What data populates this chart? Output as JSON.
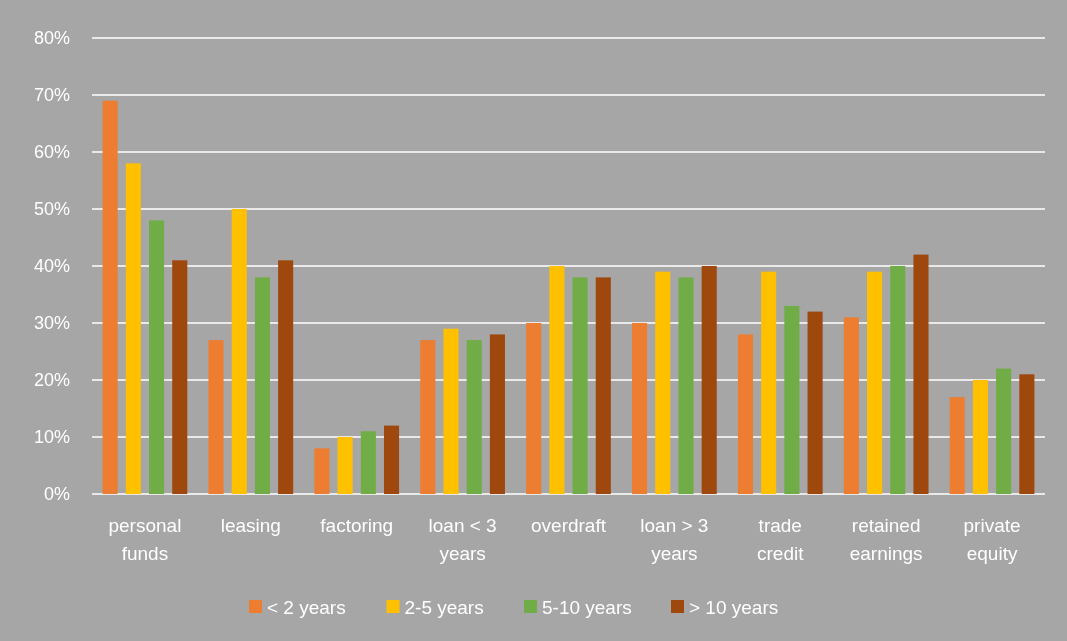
{
  "chart_data": {
    "type": "bar",
    "categories": [
      "personal funds",
      "leasing",
      "factoring",
      "loan < 3 years",
      "overdraft",
      "loan > 3 years",
      "trade credit",
      "retained earnings",
      "private equity"
    ],
    "series": [
      {
        "name": "< 2 years",
        "color": "#ed7d31",
        "values": [
          69,
          27,
          8,
          27,
          30,
          30,
          28,
          31,
          17
        ]
      },
      {
        "name": "2-5 years",
        "color": "#ffc000",
        "values": [
          58,
          50,
          10,
          29,
          40,
          39,
          39,
          39,
          20
        ]
      },
      {
        "name": "5-10 years",
        "color": "#70ad47",
        "values": [
          48,
          38,
          11,
          27,
          38,
          38,
          33,
          40,
          22
        ]
      },
      {
        "name": "> 10 years",
        "color": "#9e480e",
        "values": [
          41,
          41,
          12,
          28,
          38,
          40,
          32,
          42,
          21
        ]
      }
    ],
    "ylim": [
      0,
      80
    ],
    "yticks": [
      {
        "value": 0,
        "label": "0%"
      },
      {
        "value": 10,
        "label": "10%"
      },
      {
        "value": 20,
        "label": "20%"
      },
      {
        "value": 30,
        "label": "30%"
      },
      {
        "value": 40,
        "label": "40%"
      },
      {
        "value": 50,
        "label": "50%"
      },
      {
        "value": 60,
        "label": "60%"
      },
      {
        "value": 70,
        "label": "70%"
      },
      {
        "value": 80,
        "label": "80%"
      }
    ],
    "grid": "y",
    "legend": "bottom"
  }
}
